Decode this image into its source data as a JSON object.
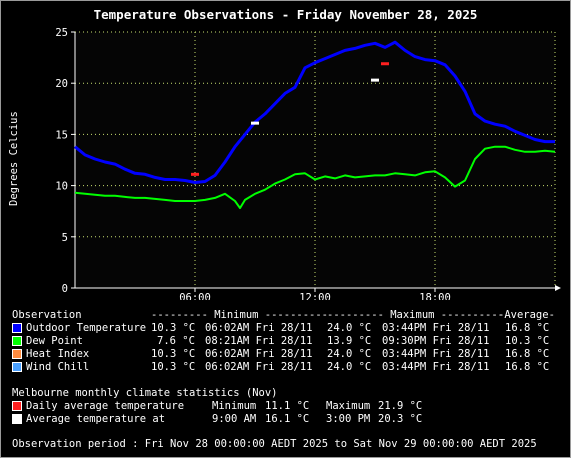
{
  "title": "Temperature Observations - Friday November 28, 2025",
  "colors": {
    "outdoor_temperature": "#0000ff",
    "dew_point": "#00ff00",
    "heat_index": "#ff8c40",
    "wind_chill": "#4aa0ff",
    "daily_average": "#ff2020",
    "average_temperature_at": "#ffffff",
    "grid": "#c8e070",
    "plot_bg": "#050505"
  },
  "chart_data": {
    "type": "line",
    "title": "Temperature Observations - Friday November 28, 2025",
    "xlabel": "",
    "ylabel": "Degrees Celcius",
    "x_unit": "hour of day",
    "xlim": [
      0,
      24
    ],
    "ylim": [
      0,
      25
    ],
    "x_ticks": [
      6,
      12,
      18
    ],
    "x_tick_labels": [
      "06:00",
      "12:00",
      "18:00"
    ],
    "y_ticks": [
      0,
      5,
      10,
      15,
      20,
      25
    ],
    "y_tick_labels": [
      "0",
      "5",
      "10",
      "15",
      "20",
      "25"
    ],
    "grid": true,
    "series": [
      {
        "name": "Outdoor Temperature",
        "x": [
          0,
          0.5,
          1,
          1.5,
          2,
          2.5,
          3,
          3.5,
          4,
          4.5,
          5,
          5.5,
          6,
          6.5,
          7,
          7.5,
          8,
          8.5,
          9,
          9.5,
          10,
          10.5,
          11,
          11.5,
          12,
          12.5,
          13,
          13.5,
          14,
          14.5,
          15,
          15.5,
          16,
          16.5,
          17,
          17.5,
          18,
          18.5,
          19,
          19.5,
          20,
          20.5,
          21,
          21.5,
          22,
          22.5,
          23,
          23.5,
          24
        ],
        "y": [
          13.8,
          13.0,
          12.6,
          12.3,
          12.1,
          11.6,
          11.2,
          11.1,
          10.8,
          10.6,
          10.6,
          10.5,
          10.3,
          10.4,
          11.0,
          12.3,
          13.8,
          15.0,
          16.2,
          17.0,
          18.0,
          19.0,
          19.6,
          21.5,
          22.0,
          22.4,
          22.8,
          23.2,
          23.4,
          23.7,
          23.9,
          23.5,
          24.0,
          23.2,
          22.6,
          22.3,
          22.2,
          21.8,
          20.7,
          19.2,
          17.0,
          16.3,
          16.0,
          15.8,
          15.3,
          14.9,
          14.5,
          14.3,
          14.3
        ]
      },
      {
        "name": "Dew Point",
        "x": [
          0,
          0.5,
          1,
          1.5,
          2,
          2.5,
          3,
          3.5,
          4,
          4.5,
          5,
          5.5,
          6,
          6.5,
          7,
          7.5,
          8,
          8.25,
          8.5,
          9,
          9.5,
          10,
          10.5,
          11,
          11.5,
          12,
          12.5,
          13,
          13.5,
          14,
          14.5,
          15,
          15.5,
          16,
          16.5,
          17,
          17.5,
          18,
          18.5,
          19,
          19.5,
          20,
          20.5,
          21,
          21.5,
          22,
          22.5,
          23,
          23.5,
          24
        ],
        "y": [
          9.3,
          9.2,
          9.1,
          9.0,
          9.0,
          8.9,
          8.8,
          8.8,
          8.7,
          8.6,
          8.5,
          8.5,
          8.5,
          8.6,
          8.8,
          9.2,
          8.5,
          7.8,
          8.6,
          9.2,
          9.6,
          10.2,
          10.6,
          11.1,
          11.2,
          10.6,
          10.9,
          10.7,
          11.0,
          10.8,
          10.9,
          11.0,
          11.0,
          11.2,
          11.1,
          11.0,
          11.3,
          11.4,
          10.8,
          9.9,
          10.5,
          12.6,
          13.6,
          13.8,
          13.8,
          13.5,
          13.3,
          13.3,
          13.4,
          13.3
        ]
      }
    ],
    "markers": [
      {
        "name": "Daily average temperature minimum",
        "x": 6.0,
        "y": 11.1
      },
      {
        "name": "Daily average temperature maximum",
        "x": 15.5,
        "y": 21.9
      },
      {
        "name": "Average temperature at 9:00 AM",
        "x": 9.0,
        "y": 16.1
      },
      {
        "name": "Average temperature at 3:00 PM",
        "x": 15.0,
        "y": 20.3
      }
    ]
  },
  "table": {
    "header": {
      "observation": "Observation",
      "minimum": "--------- Minimum ----------",
      "maximum": "--------- Maximum ----------",
      "average": "-Average-"
    },
    "rows": [
      {
        "label": "Outdoor Temperature",
        "min_value": "10.3 °C",
        "min_time": "06:02AM Fri 28/11",
        "max_value": "24.0 °C",
        "max_time": "03:44PM Fri 28/11",
        "average": "16.8 °C"
      },
      {
        "label": "Dew Point",
        "min_value": "7.6 °C",
        "min_time": "08:21AM Fri 28/11",
        "max_value": "13.9 °C",
        "max_time": "09:30PM Fri 28/11",
        "average": "10.3 °C"
      },
      {
        "label": "Heat Index",
        "min_value": "10.3 °C",
        "min_time": "06:02AM Fri 28/11",
        "max_value": "24.0 °C",
        "max_time": "03:44PM Fri 28/11",
        "average": "16.8 °C"
      },
      {
        "label": "Wind Chill",
        "min_value": "10.3 °C",
        "min_time": "06:02AM Fri 28/11",
        "max_value": "24.0 °C",
        "max_time": "03:44PM Fri 28/11",
        "average": "16.8 °C"
      }
    ]
  },
  "climate": {
    "heading": "Melbourne monthly climate statistics (Nov)",
    "daily_label": "Daily average temperature",
    "daily_min_label": "Minimum",
    "daily_min_value": "11.1 °C",
    "daily_max_label": "Maximum",
    "daily_max_value": "21.9 °C",
    "at_label": "Average temperature at",
    "at_time1": "9:00 AM",
    "at_value1": "16.1 °C",
    "at_time2": "3:00 PM",
    "at_value2": "20.3 °C"
  },
  "footer": "Observation period : Fri Nov 28 00:00:00 AEDT 2025 to Sat Nov 29 00:00:00 AEDT 2025"
}
